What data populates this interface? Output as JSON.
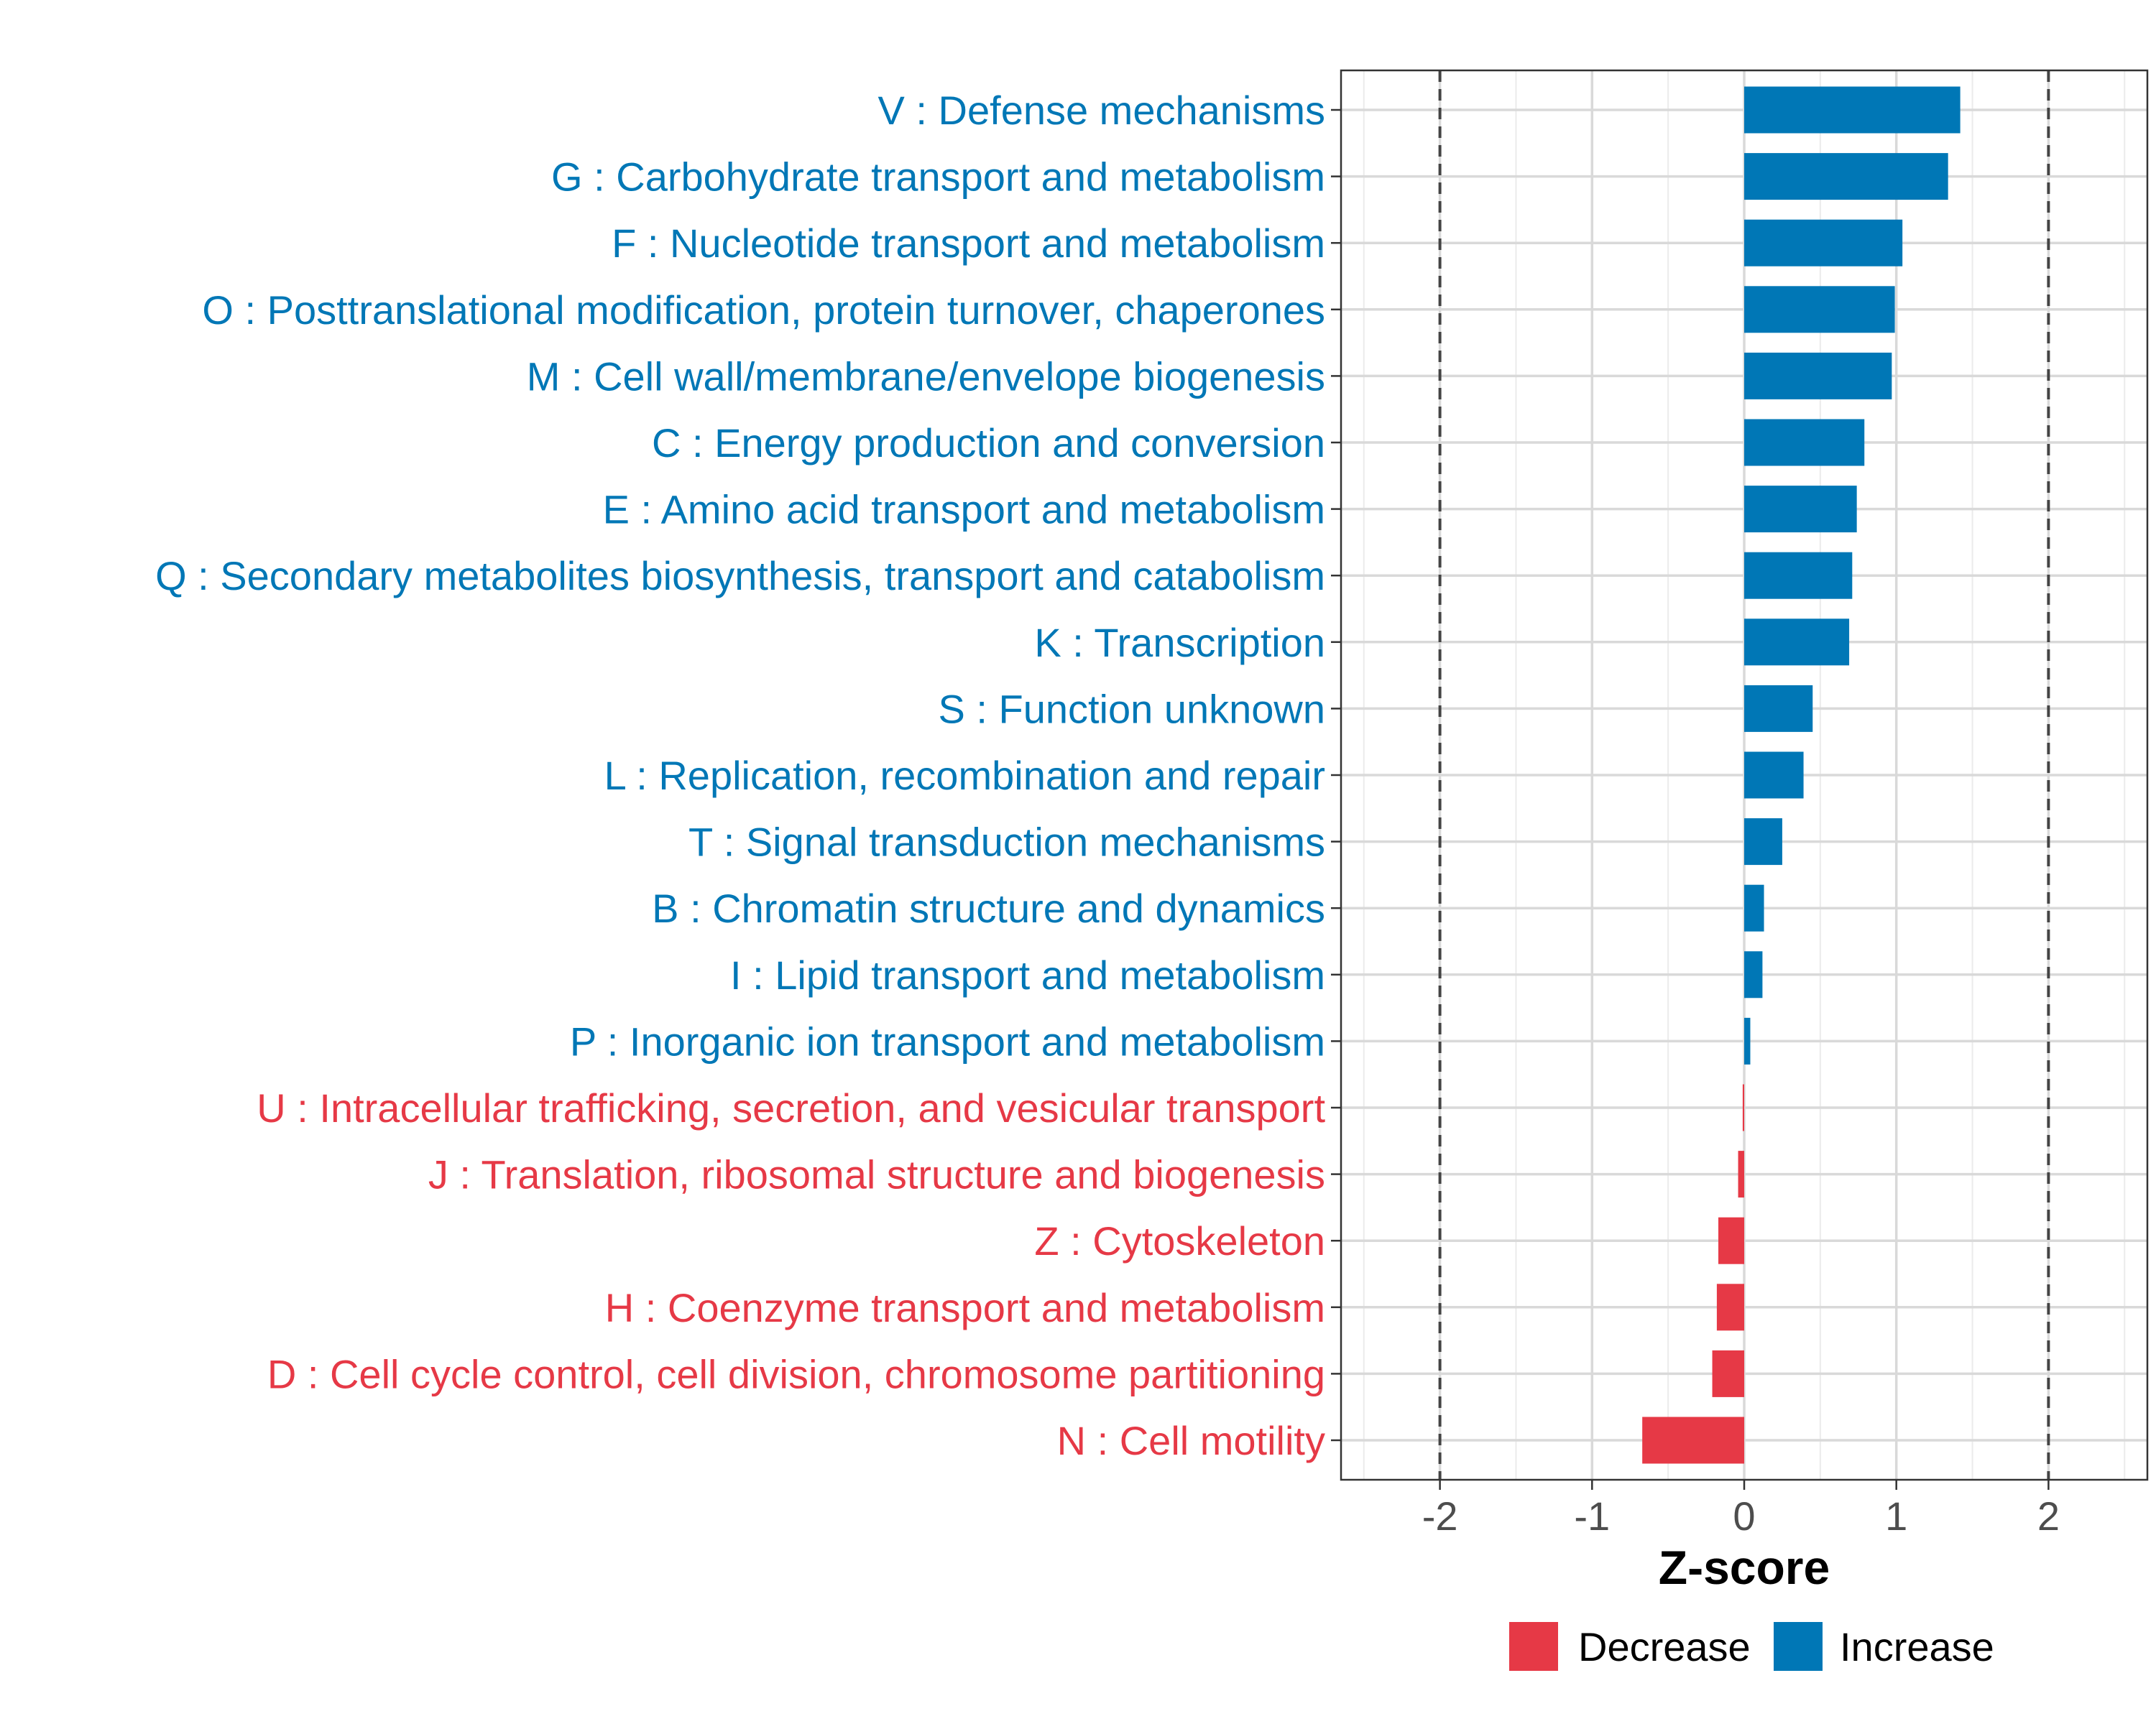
{
  "chart_data": {
    "type": "bar",
    "orientation": "horizontal",
    "xlabel": "Z-score",
    "xlim": [
      -2.65,
      2.65
    ],
    "xticks": [
      -2,
      -1,
      0,
      1,
      2
    ],
    "xtick_labels": [
      "-2",
      "-1",
      "0",
      "1",
      "2"
    ],
    "reference_lines": [
      -2,
      2
    ],
    "grid": true,
    "legend_position": "bottom",
    "legend": [
      {
        "label": "Decrease",
        "color": "#E63946"
      },
      {
        "label": "Increase",
        "color": "#0077B6"
      }
    ],
    "categories": [
      "V : Defense mechanisms",
      "G : Carbohydrate transport and metabolism",
      "F : Nucleotide transport and metabolism",
      "O : Posttranslational modification, protein turnover, chaperones",
      "M : Cell wall/membrane/envelope biogenesis",
      "C : Energy production and conversion",
      "E : Amino acid transport and metabolism",
      "Q : Secondary metabolites biosynthesis, transport and catabolism",
      "K : Transcription",
      "S : Function unknown",
      "L : Replication, recombination and repair",
      "T : Signal transduction mechanisms",
      "B : Chromatin structure and dynamics",
      "I : Lipid transport and metabolism",
      "P : Inorganic ion transport and metabolism",
      "U : Intracellular trafficking, secretion, and vesicular transport",
      "J : Translation, ribosomal structure and biogenesis",
      "Z : Cytoskeleton",
      "H : Coenzyme transport and metabolism",
      "D : Cell cycle control, cell division, chromosome partitioning",
      "N : Cell motility"
    ],
    "values": [
      1.42,
      1.34,
      1.04,
      0.99,
      0.97,
      0.79,
      0.74,
      0.71,
      0.69,
      0.45,
      0.39,
      0.25,
      0.13,
      0.12,
      0.04,
      -0.01,
      -0.04,
      -0.17,
      -0.18,
      -0.21,
      -0.67
    ],
    "direction": [
      "Increase",
      "Increase",
      "Increase",
      "Increase",
      "Increase",
      "Increase",
      "Increase",
      "Increase",
      "Increase",
      "Increase",
      "Increase",
      "Increase",
      "Increase",
      "Increase",
      "Increase",
      "Decrease",
      "Decrease",
      "Decrease",
      "Decrease",
      "Decrease",
      "Decrease"
    ]
  }
}
